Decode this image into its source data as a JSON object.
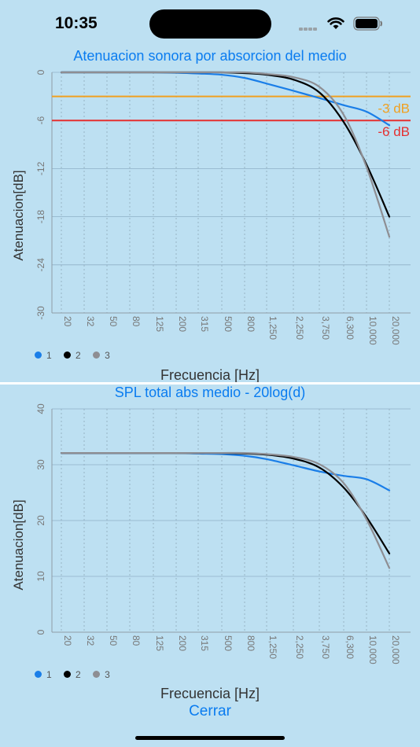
{
  "status_bar": {
    "time": "10:35"
  },
  "chart1": {
    "title": "Atenuacion sonora por absorcion del medio",
    "ylabel": "Atenuacion[dB]",
    "xlabel": "Frecuencia [Hz]",
    "ref_lines": [
      {
        "label": "-3 dB",
        "value": -3,
        "color": "#f0a020"
      },
      {
        "label": "-6 dB",
        "value": -6,
        "color": "#e53030"
      }
    ]
  },
  "chart2": {
    "title": "SPL total abs medio - 20log(d)",
    "ylabel": "Atenuacion[dB]",
    "xlabel": "Frecuencia [Hz]"
  },
  "legend": [
    {
      "label": "1",
      "color": "#1a7ee8"
    },
    {
      "label": "2",
      "color": "#000000"
    },
    {
      "label": "3",
      "color": "#8e8e93"
    }
  ],
  "close_label": "Cerrar",
  "chart_data": [
    {
      "type": "line",
      "title": "Atenuacion sonora por absorcion del medio",
      "xlabel": "Frecuencia [Hz]",
      "ylabel": "Atenuacion[dB]",
      "categories": [
        "20",
        "32",
        "50",
        "80",
        "125",
        "200",
        "315",
        "500",
        "800",
        "1,250",
        "2,250",
        "3,750",
        "6,300",
        "10,000",
        "20,000"
      ],
      "ylim": [
        -30,
        0
      ],
      "yticks": [
        0,
        -6,
        -12,
        -18,
        -24,
        -30
      ],
      "grid": true,
      "legend": "bottom-left",
      "series": [
        {
          "name": "1",
          "color": "#1a7ee8",
          "values": [
            0,
            0,
            0,
            0,
            0,
            -0.05,
            -0.15,
            -0.3,
            -0.7,
            -1.4,
            -2.3,
            -3.2,
            -4.1,
            -4.9,
            -6.6
          ]
        },
        {
          "name": "2",
          "color": "#000000",
          "values": [
            0,
            0,
            0,
            0,
            0,
            0,
            0,
            0,
            -0.1,
            -0.3,
            -0.9,
            -2.5,
            -6.2,
            -11.5,
            -18
          ]
        },
        {
          "name": "3",
          "color": "#8e8e93",
          "values": [
            0,
            0,
            0,
            0,
            0,
            0,
            0,
            0,
            0,
            -0.2,
            -0.6,
            -1.8,
            -5.3,
            -11.8,
            -20.5
          ]
        }
      ],
      "reference_lines": [
        {
          "label": "-3 dB",
          "value": -3,
          "color": "#f0a020"
        },
        {
          "label": "-6 dB",
          "value": -6,
          "color": "#e53030"
        }
      ]
    },
    {
      "type": "line",
      "title": "SPL total abs medio - 20log(d)",
      "xlabel": "Frecuencia [Hz]",
      "ylabel": "Atenuacion[dB]",
      "categories": [
        "20",
        "32",
        "50",
        "80",
        "125",
        "200",
        "315",
        "500",
        "800",
        "1,250",
        "2,250",
        "3,750",
        "6,300",
        "10,000",
        "20,000"
      ],
      "ylim": [
        0,
        40
      ],
      "yticks": [
        0,
        10,
        20,
        30,
        40
      ],
      "grid": true,
      "legend": "bottom-left",
      "series": [
        {
          "name": "1",
          "color": "#1a7ee8",
          "values": [
            32.1,
            32.1,
            32.1,
            32.1,
            32.1,
            32.1,
            32.0,
            31.9,
            31.6,
            31.0,
            29.9,
            28.8,
            28.0,
            27.4,
            25.4
          ]
        },
        {
          "name": "2",
          "color": "#000000",
          "values": [
            32.1,
            32.1,
            32.1,
            32.1,
            32.1,
            32.1,
            32.1,
            32.1,
            32.0,
            31.8,
            31.1,
            29.5,
            25.9,
            20.6,
            14.1
          ]
        },
        {
          "name": "3",
          "color": "#8e8e93",
          "values": [
            32.1,
            32.1,
            32.1,
            32.1,
            32.1,
            32.1,
            32.1,
            32.1,
            32.1,
            31.9,
            31.4,
            30.1,
            26.7,
            20.2,
            11.5
          ]
        }
      ]
    }
  ]
}
